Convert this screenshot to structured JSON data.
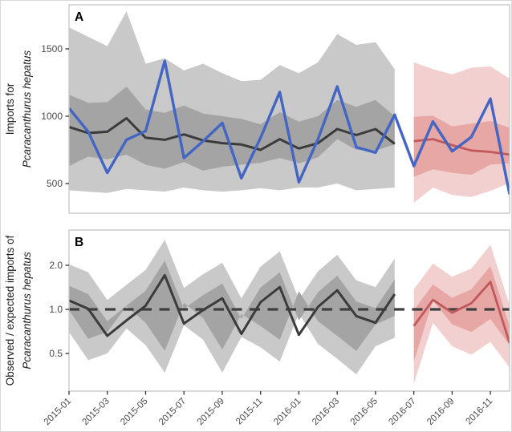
{
  "figure": {
    "panel_a_letter": "A",
    "panel_b_letter": "B",
    "colors": {
      "observed_line": "#4365c4",
      "expected_line_historical": "#3b3b3b",
      "expected_line_forecast": "#c1585a",
      "band_outer_historical": "#c9c9c9",
      "band_inner_historical": "#a4a4a4",
      "band_outer_forecast": "#f3d0d0",
      "band_inner_forecast": "#e7a8a5",
      "reference_dashed": "#3f3f3f",
      "panel_border": "#c6c6c6",
      "tick_text": "#4a4a4a",
      "axis_title_text": "#1a1a1a"
    }
  },
  "chart_data": [
    {
      "type": "line",
      "panel": "A",
      "ylabel_line1": "Imports for",
      "ylabel_line2": "Pcaracanthurus hepatus",
      "ylabel_line2_italic": true,
      "y_scale": "linear",
      "ylim": [
        280,
        1830
      ],
      "y_ticks": [
        500,
        1000,
        1500
      ],
      "x": [
        "2015-01",
        "2015-02",
        "2015-03",
        "2015-04",
        "2015-05",
        "2015-06",
        "2015-07",
        "2015-08",
        "2015-09",
        "2015-10",
        "2015-11",
        "2015-12",
        "2016-01",
        "2016-02",
        "2016-03",
        "2016-04",
        "2016-05",
        "2016-06",
        "2016-07",
        "2016-08",
        "2016-09",
        "2016-10",
        "2016-11",
        "2016-12"
      ],
      "x_tick_labels": [
        "2015-01",
        "2015-03",
        "2015-05",
        "2015-07",
        "2015-09",
        "2015-11",
        "2016-01",
        "2016-03",
        "2016-05",
        "2016-07",
        "2016-09",
        "2016-11"
      ],
      "series": [
        {
          "name": "observed imports",
          "x_start": 0,
          "values": [
            1060,
            885,
            580,
            825,
            890,
            1410,
            690,
            815,
            950,
            540,
            840,
            1180,
            510,
            830,
            1220,
            770,
            730,
            1010,
            630,
            960,
            740,
            845,
            1130,
            420
          ]
        },
        {
          "name": "expected imports (historical)",
          "x_start": 0,
          "values": [
            920,
            875,
            885,
            985,
            840,
            825,
            865,
            820,
            800,
            790,
            750,
            830,
            760,
            800,
            905,
            860,
            905,
            795
          ]
        },
        {
          "name": "expected imports (forecast)",
          "x_start": 18,
          "values": [
            815,
            830,
            785,
            745,
            735,
            715
          ]
        }
      ],
      "bands": [
        {
          "name": "outer interval (historical)",
          "x_start": 0,
          "high": [
            1660,
            1590,
            1520,
            1780,
            1390,
            1430,
            1340,
            1390,
            1320,
            1260,
            1270,
            1380,
            1320,
            1400,
            1610,
            1530,
            1550,
            1350
          ],
          "low": [
            470,
            460,
            450,
            500,
            470,
            470,
            450,
            465,
            450,
            440,
            450,
            470,
            440,
            450,
            460,
            430,
            440,
            450
          ]
        },
        {
          "name": "inner interval (historical)",
          "x_start": 0,
          "high": [
            1160,
            1100,
            1105,
            1220,
            1050,
            1025,
            1080,
            1020,
            1000,
            980,
            940,
            1030,
            960,
            1000,
            1120,
            1070,
            1120,
            1000
          ],
          "low": [
            790,
            745,
            750,
            830,
            695,
            650,
            690,
            655,
            640,
            625,
            595,
            660,
            610,
            640,
            715,
            680,
            700,
            630
          ]
        },
        {
          "name": "outer interval (forecast)",
          "x_start": 18,
          "high": [
            1400,
            1350,
            1310,
            1360,
            1370,
            1280
          ],
          "low": [
            505,
            445,
            400,
            415,
            470,
            357
          ]
        },
        {
          "name": "inner interval (forecast)",
          "x_start": 18,
          "high": [
            995,
            1005,
            925,
            945,
            965,
            915
          ],
          "low": [
            650,
            640,
            565,
            580,
            605,
            550
          ]
        }
      ]
    },
    {
      "type": "line",
      "panel": "B",
      "ylabel_line1": "Observed / expected imports of",
      "ylabel_line2": "Pcaracanthurus hepatus",
      "ylabel_line2_italic": true,
      "y_scale": "log2",
      "ylim": [
        0.28,
        3.49
      ],
      "y_ticks": [
        0.5,
        1.0,
        2.0
      ],
      "y_tick_labels": [
        "0.5",
        "1.0",
        "2.0"
      ],
      "reference_line": 1.0,
      "x": [
        "2015-01",
        "2015-02",
        "2015-03",
        "2015-04",
        "2015-05",
        "2015-06",
        "2015-07",
        "2015-08",
        "2015-09",
        "2015-10",
        "2015-11",
        "2015-12",
        "2016-01",
        "2016-02",
        "2016-03",
        "2016-04",
        "2016-05",
        "2016-06",
        "2016-07",
        "2016-08",
        "2016-09",
        "2016-10",
        "2016-11",
        "2016-12"
      ],
      "series": [
        {
          "name": "observed/expected ratio (historical)",
          "x_start": 0,
          "values": [
            1.15,
            1.01,
            0.66,
            0.84,
            1.06,
            1.71,
            0.8,
            0.99,
            1.19,
            0.68,
            1.12,
            1.42,
            0.67,
            1.04,
            1.35,
            0.9,
            0.81,
            1.27
          ]
        },
        {
          "name": "observed/expected ratio (forecast)",
          "x_start": 18,
          "values": [
            0.77,
            1.16,
            0.95,
            1.1,
            1.54,
            0.59
          ]
        }
      ],
      "bands": [
        {
          "name": "outer interval (historical)",
          "x_start": 0,
          "high": [
            2.03,
            1.79,
            1.16,
            1.47,
            1.86,
            2.99,
            1.4,
            1.74,
            2.08,
            1.19,
            1.96,
            2.49,
            1.17,
            1.82,
            2.36,
            1.58,
            1.42,
            2.22
          ],
          "low": [
            0.64,
            0.56,
            0.36,
            0.46,
            0.58,
            0.94,
            0.44,
            0.55,
            0.65,
            0.37,
            0.62,
            0.78,
            0.37,
            0.57,
            0.74,
            0.5,
            0.45,
            0.7
          ]
        },
        {
          "name": "inner interval (historical)",
          "x_start": 0,
          "high": [
            1.45,
            1.27,
            0.83,
            1.06,
            1.34,
            2.15,
            1.01,
            1.25,
            1.5,
            0.86,
            1.41,
            1.79,
            0.84,
            1.31,
            1.7,
            1.13,
            1.02,
            1.6
          ],
          "low": [
            0.9,
            0.79,
            0.52,
            0.66,
            0.83,
            1.33,
            0.62,
            0.77,
            0.93,
            0.53,
            0.87,
            1.11,
            0.52,
            0.81,
            1.05,
            0.7,
            0.63,
            0.99
          ]
        },
        {
          "name": "outer interval (forecast)",
          "x_start": 18,
          "high": [
            1.37,
            2.06,
            1.67,
            1.9,
            2.76,
            1.07
          ],
          "low": [
            0.4,
            0.6,
            0.49,
            0.56,
            0.81,
            0.31
          ]
        },
        {
          "name": "inner interval (forecast)",
          "x_start": 18,
          "high": [
            0.99,
            1.48,
            1.2,
            1.37,
            1.98,
            0.77
          ],
          "low": [
            0.57,
            0.86,
            0.7,
            0.79,
            1.15,
            0.44
          ]
        }
      ]
    }
  ]
}
